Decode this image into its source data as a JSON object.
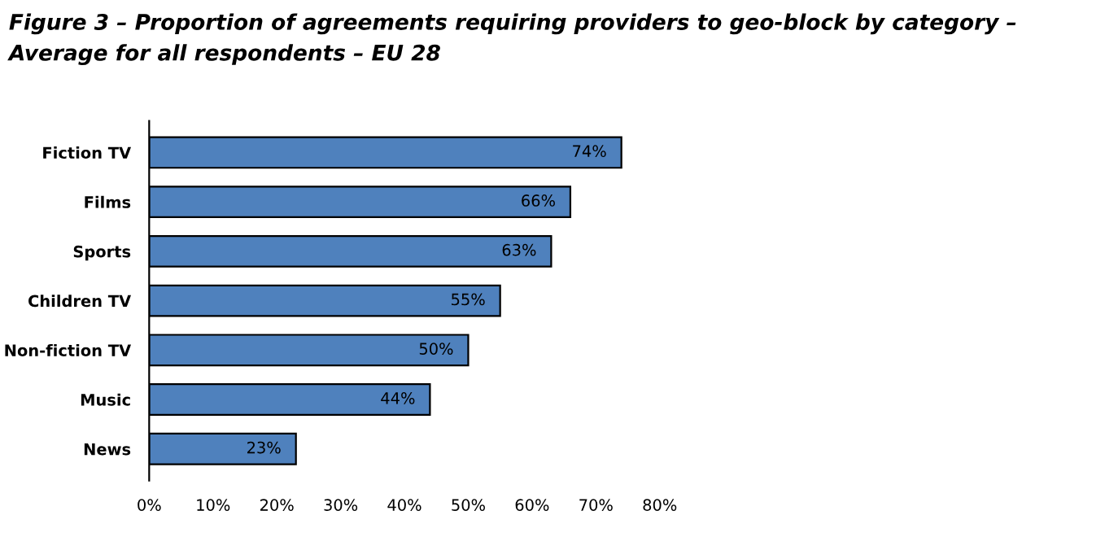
{
  "chart_data": {
    "type": "bar",
    "orientation": "horizontal",
    "title": "Figure 3 – Proportion of agreements requiring providers to geo-block by category – Average for all respondents – EU 28",
    "categories": [
      "Fiction TV",
      "Films",
      "Sports",
      "Children TV",
      "Non-fiction TV",
      "Music",
      "News"
    ],
    "values": [
      74,
      66,
      63,
      55,
      50,
      44,
      23
    ],
    "value_labels": [
      "74%",
      "66%",
      "63%",
      "55%",
      "50%",
      "44%",
      "23%"
    ],
    "color": "#4f81bd",
    "xlim": [
      0,
      80
    ],
    "xticks": [
      {
        "value": 0,
        "label": "0%"
      },
      {
        "value": 10,
        "label": "10%"
      },
      {
        "value": 20,
        "label": "20%"
      },
      {
        "value": 30,
        "label": "30%"
      },
      {
        "value": 40,
        "label": "40%"
      },
      {
        "value": 50,
        "label": "50%"
      },
      {
        "value": 60,
        "label": "60%"
      },
      {
        "value": 70,
        "label": "70%"
      },
      {
        "value": 80,
        "label": "80%"
      }
    ],
    "grid": false,
    "legend": false
  }
}
